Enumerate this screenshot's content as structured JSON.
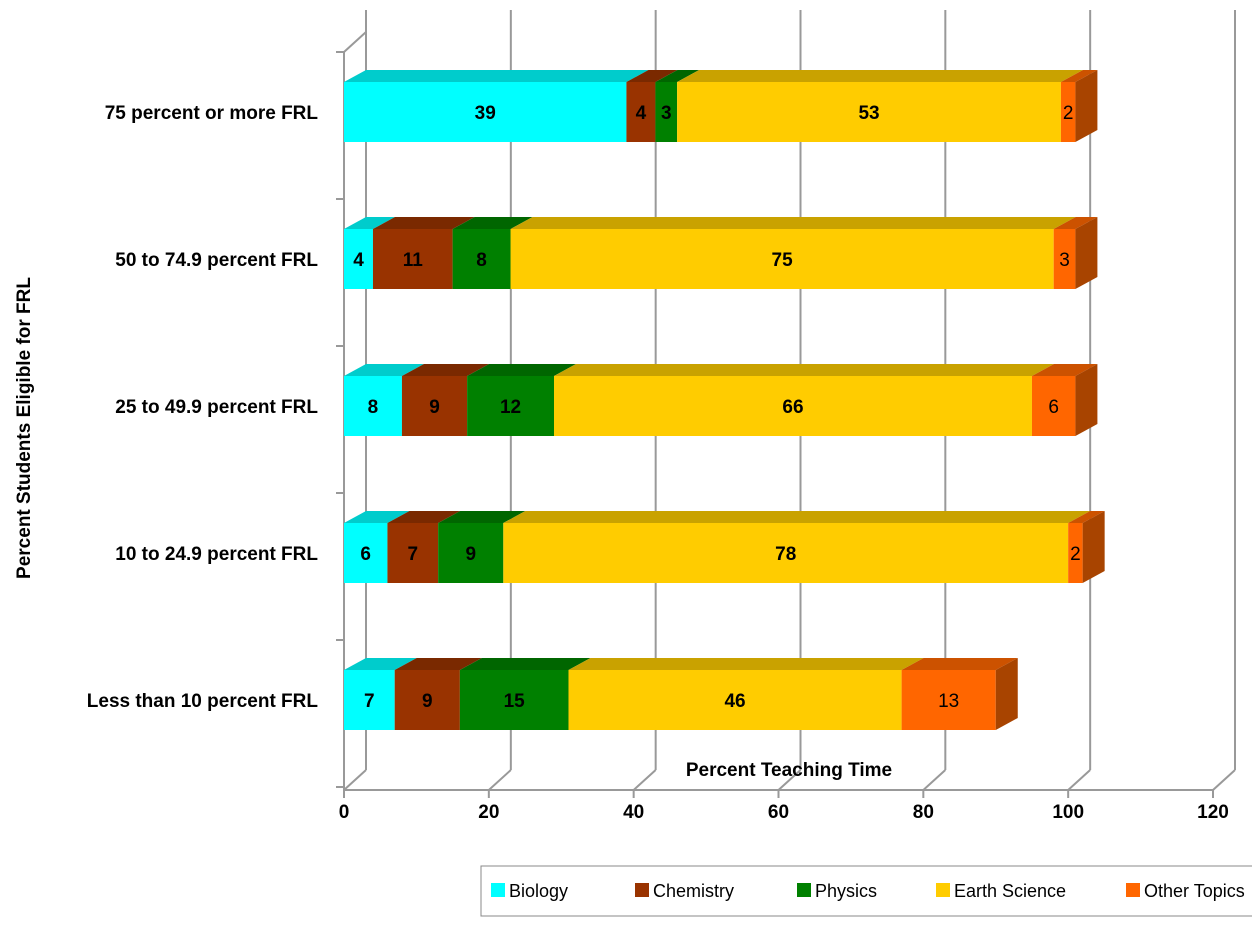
{
  "chart_data": {
    "type": "bar",
    "orientation": "horizontal",
    "stacked": true,
    "style": "3d",
    "xlabel": "Percent Teaching Time",
    "ylabel": "Percent Students Eligible for FRL",
    "xlim": [
      0,
      120
    ],
    "xticks": [
      "0",
      "20",
      "40",
      "60",
      "80",
      "100",
      "120"
    ],
    "grid": true,
    "legend_position": "bottom-right",
    "categories": [
      "75 percent or more FRL",
      "50 to 74.9 percent FRL",
      "25 to 49.9 percent FRL",
      "10 to 24.9 percent FRL",
      "Less than 10 percent FRL"
    ],
    "series": [
      {
        "name": "Biology",
        "color": "#00FFFF",
        "top_color": "#00CCCC",
        "side_color": "#00B0B0",
        "values": [
          39,
          4,
          8,
          6,
          7
        ]
      },
      {
        "name": "Chemistry",
        "color": "#993300",
        "top_color": "#7A2900",
        "side_color": "#6B2400",
        "values": [
          4,
          11,
          9,
          7,
          9
        ]
      },
      {
        "name": "Physics",
        "color": "#008000",
        "top_color": "#006600",
        "side_color": "#005500",
        "values": [
          3,
          8,
          12,
          9,
          15
        ]
      },
      {
        "name": "Earth Science",
        "color": "#FFCC00",
        "top_color": "#C9A200",
        "side_color": "#B08E00",
        "values": [
          53,
          75,
          66,
          78,
          46
        ]
      },
      {
        "name": "Other Topics",
        "color": "#FF6600",
        "top_color": "#CC5200",
        "side_color": "#A84400",
        "values": [
          2,
          3,
          6,
          2,
          13
        ]
      }
    ]
  }
}
